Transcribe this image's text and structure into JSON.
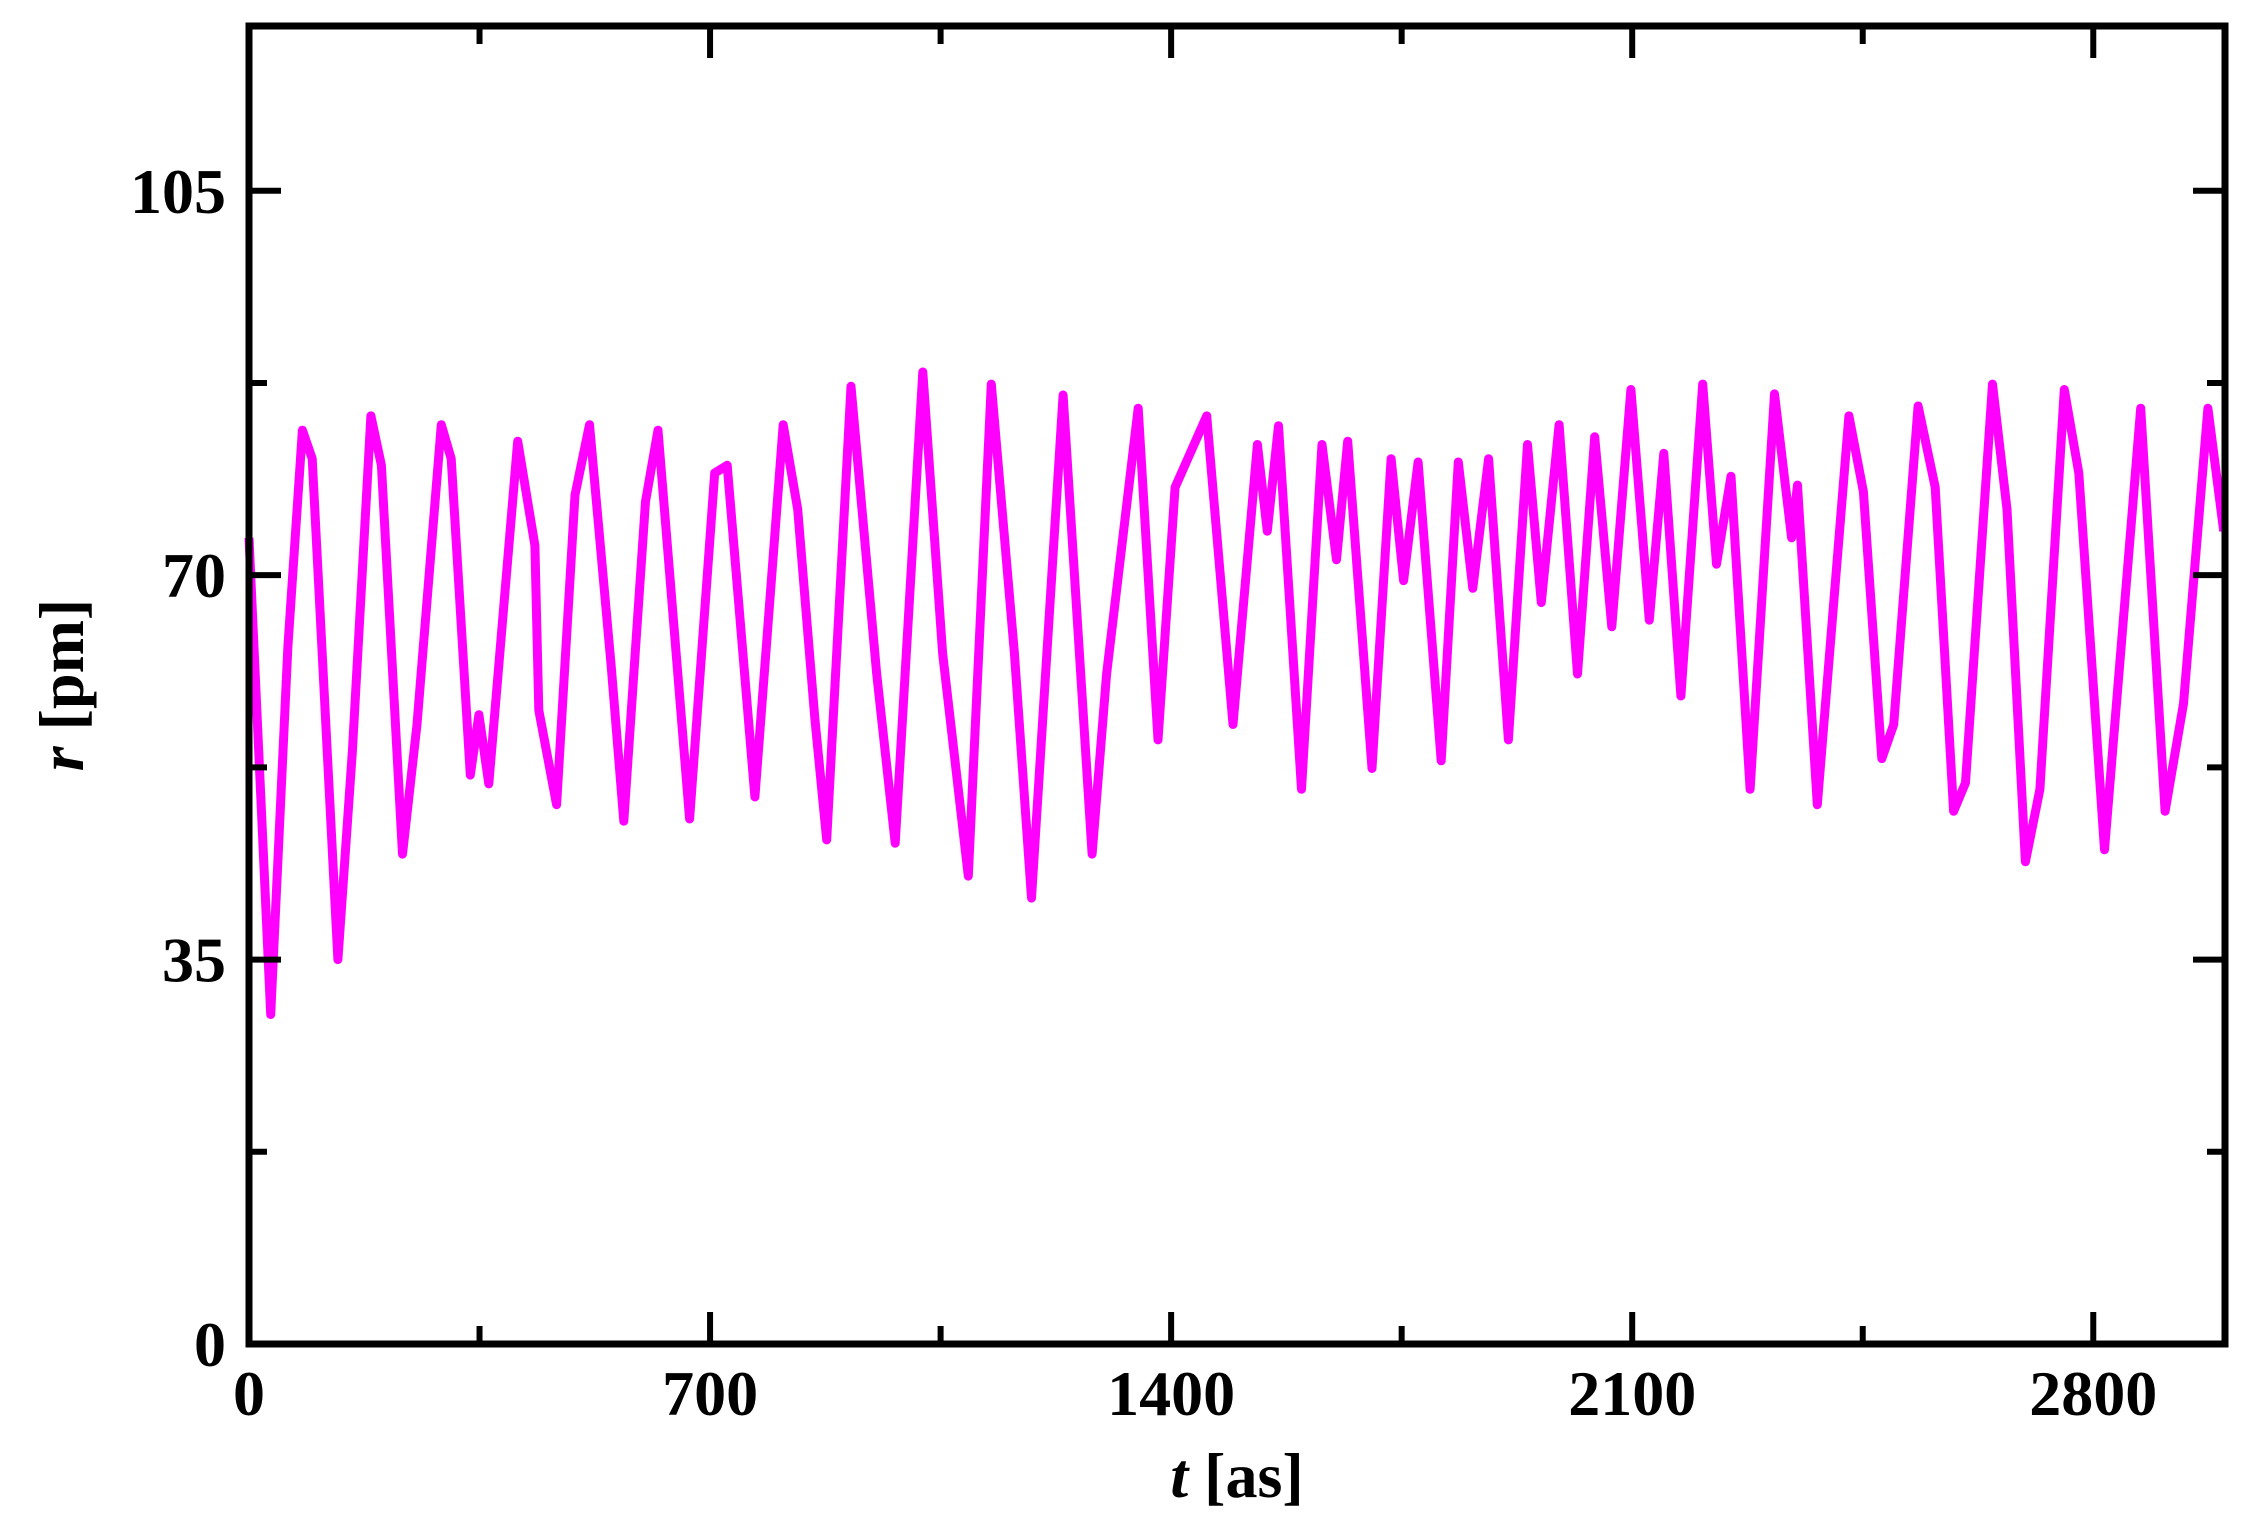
{
  "chart_data": {
    "type": "line",
    "xlabel": {
      "var": "t",
      "unit": "[as]"
    },
    "ylabel": {
      "var": "r",
      "unit": "[pm]"
    },
    "color": "#ff00ff",
    "x": [
      0,
      33,
      59,
      81,
      96,
      135,
      157,
      185,
      201,
      233,
      255,
      292,
      307,
      336,
      349,
      364,
      408,
      434,
      440,
      467,
      495,
      517,
      550,
      569,
      602,
      621,
      669,
      707,
      726,
      768,
      811,
      833,
      859,
      877,
      914,
      953,
      981,
      1023,
      1053,
      1092,
      1127,
      1162,
      1188,
      1236,
      1280,
      1302,
      1350,
      1380,
      1406,
      1454,
      1494,
      1531,
      1546,
      1563,
      1598,
      1629,
      1651,
      1668,
      1705,
      1734,
      1753,
      1775,
      1810,
      1836,
      1858,
      1882,
      1912,
      1941,
      1962,
      1989,
      2017,
      2043,
      2069,
      2098,
      2126,
      2148,
      2174,
      2207,
      2228,
      2250,
      2279,
      2316,
      2342,
      2351,
      2381,
      2429,
      2451,
      2479,
      2497,
      2534,
      2560,
      2588,
      2606,
      2647,
      2669,
      2697,
      2719,
      2756,
      2778,
      2817,
      2872,
      2909,
      2937,
      2974,
      2998
    ],
    "values": [
      73.4,
      30,
      63.5,
      83.2,
      80.6,
      35,
      54,
      84.5,
      80,
      44.6,
      56.4,
      83.7,
      80.6,
      51.8,
      57.3,
      51,
      82.2,
      72.7,
      57.7,
      49.1,
      77.3,
      83.7,
      61.6,
      47.6,
      76.7,
      83.2,
      47.8,
      79.3,
      80,
      49.8,
      83.7,
      76,
      57,
      45.9,
      87.2,
      61,
      45.6,
      88.5,
      62.9,
      42.6,
      87.4,
      62.9,
      40.6,
      86.4,
      44.6,
      61,
      85.2,
      55,
      78,
      84.5,
      56.4,
      81.9,
      74,
      83.6,
      50.5,
      81.9,
      71.4,
      82.2,
      52.4,
      80.6,
      69.5,
      80.3,
      53.1,
      80.3,
      68.8,
      80.6,
      55,
      81.9,
      67.5,
      83.7,
      61,
      82.6,
      65.3,
      86.9,
      65.9,
      81.1,
      59,
      87.4,
      71,
      79,
      50.5,
      86.5,
      73.4,
      78.2,
      49.1,
      84.5,
      77.6,
      53.3,
      56.4,
      85.4,
      78,
      48.5,
      51.1,
      87.4,
      76,
      43.9,
      50.5,
      86.9,
      79.3,
      45,
      85.2,
      48.5,
      58.3,
      85.2,
      74
    ],
    "xlim": [
      0,
      3000
    ],
    "xticks": [
      0,
      700,
      1400,
      2100,
      2800
    ],
    "xminorticks": [
      350,
      1050,
      1750,
      2450
    ],
    "ylim": [
      0,
      120
    ],
    "yticks": [
      0,
      35,
      70,
      105
    ],
    "yminorticks": [
      17.5,
      52.5,
      87.5
    ]
  }
}
